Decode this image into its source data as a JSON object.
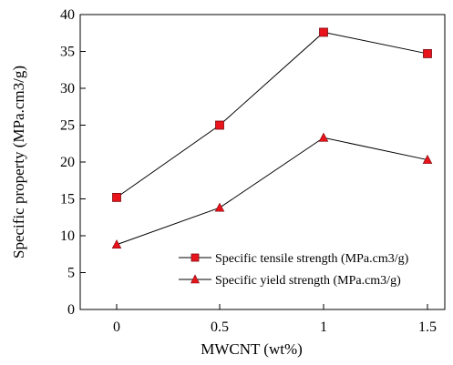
{
  "chart_data": {
    "type": "line",
    "categories": [
      "0",
      "0.5",
      "1",
      "1.5"
    ],
    "x": [
      0,
      0.5,
      1,
      1.5
    ],
    "xlabel": "MWCNT (wt%)",
    "ylabel": "Specific property (MPa.cm3/g)",
    "ylim": [
      0,
      40
    ],
    "yticks": [
      0,
      5,
      10,
      15,
      20,
      25,
      30,
      35,
      40
    ],
    "grid": false,
    "legend_position": "bottom-right",
    "series": [
      {
        "name": "Specific tensile strength (MPa.cm3/g)",
        "values": [
          15.2,
          25.0,
          37.6,
          34.7
        ],
        "marker": "square",
        "marker_color": "#e8131b",
        "line_color": "#000000"
      },
      {
        "name": "Specific yield strength (MPa.cm3/g)",
        "values": [
          8.8,
          13.8,
          23.3,
          20.3
        ],
        "marker": "triangle",
        "marker_color": "#e8131b",
        "line_color": "#000000"
      }
    ]
  }
}
